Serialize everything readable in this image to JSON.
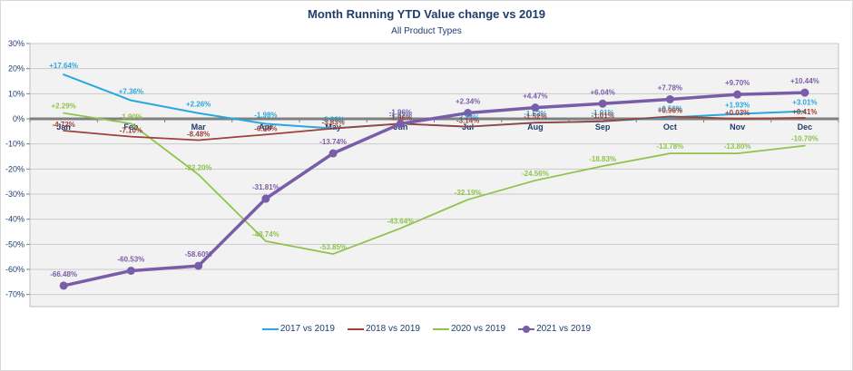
{
  "chart": {
    "title": "Month Running YTD Value change vs 2019",
    "subtitle": "All Product Types",
    "colors": {
      "title_text": "#1f3d6e",
      "axis_text": "#1f3d6e",
      "plot_background": "#f2f2f2",
      "gridline": "#cacaca",
      "zero_axis": "#7f7f7f",
      "plot_border": "#bfbfbf"
    }
  },
  "chart_data": {
    "type": "line",
    "title": "Month Running YTD Value change vs 2019",
    "subtitle": "All Product Types",
    "xlabel": "",
    "ylabel": "",
    "ylim": [
      -75,
      30
    ],
    "grid": true,
    "legend_position": "bottom",
    "categories": [
      "Jan",
      "Feb",
      "Mar",
      "Apr",
      "May",
      "Jun",
      "Jul",
      "Aug",
      "Sep",
      "Oct",
      "Nov",
      "Dec"
    ],
    "y_ticks": [
      "30%",
      "20%",
      "10%",
      "0%",
      "-10%",
      "-20%",
      "-30%",
      "-40%",
      "-50%",
      "-60%",
      "-70%"
    ],
    "series": [
      {
        "name": "2017 vs 2019",
        "color": "#29a8df",
        "marker": false,
        "values": [
          17.64,
          7.36,
          2.26,
          -1.98,
          -3.83,
          -1.92,
          -3.14,
          -1.52,
          -1.01,
          0.56,
          1.93,
          3.01
        ],
        "labels": [
          "+17.64%",
          "+7.36%",
          "+2.26%",
          "-1.98%",
          "-3.83%",
          "-1.92%",
          "-3.14%",
          "-1.52%",
          "-1.01%",
          "+0.56%",
          "+1.93%",
          "+3.01%"
        ]
      },
      {
        "name": "2018 vs 2019",
        "color": "#9e4139",
        "marker": false,
        "values": [
          -4.72,
          -7.1,
          -8.48,
          -6.26,
          -3.83,
          -1.96,
          -3.14,
          -1.52,
          -1.01,
          0.96,
          0.03,
          0.41
        ],
        "labels": [
          "-4.72%",
          "-7.10%",
          "-8.48%",
          "-6.26%",
          "-3.83%",
          "-1.96%",
          "-3.14%",
          "-1.52%",
          "-1.01%",
          "+0.96%",
          "+0.03%",
          "+0.41%"
        ]
      },
      {
        "name": "2020 vs 2019",
        "color": "#8fc34c",
        "marker": false,
        "values": [
          2.29,
          -1.9,
          -22.2,
          -48.74,
          -53.85,
          -43.64,
          -32.19,
          -24.56,
          -18.83,
          -13.78,
          -13.8,
          -10.7
        ],
        "labels": [
          "+2.29%",
          "-1.90%",
          "-22.20%",
          "-48.74%",
          "-53.85%",
          "-43.64%",
          "-32.19%",
          "-24.56%",
          "-18.83%",
          "-13.78%",
          "-13.80%",
          "-10.70%"
        ]
      },
      {
        "name": "2021 vs 2019",
        "color": "#7a5da8",
        "marker": true,
        "values": [
          -66.48,
          -60.53,
          -58.6,
          -31.81,
          -13.74,
          -1.96,
          2.34,
          4.47,
          6.04,
          7.78,
          9.7,
          10.44
        ],
        "labels": [
          "-66.48%",
          "-60.53%",
          "-58.60%",
          "-31.81%",
          "-13.74%",
          "-1.96%",
          "+2.34%",
          "+4.47%",
          "+6.04%",
          "+7.78%",
          "+9.70%",
          "+10.44%"
        ]
      }
    ]
  }
}
